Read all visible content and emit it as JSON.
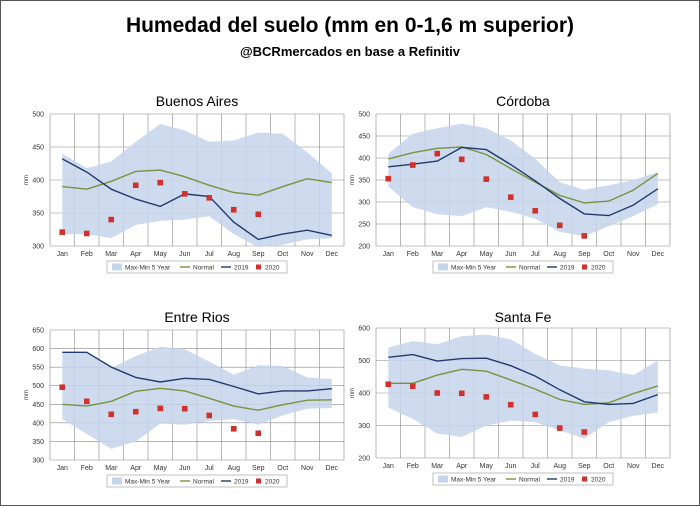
{
  "header": {
    "title": "Humedad del suelo (mm en 0-1,6 m superior)",
    "subtitle": "@BCRmercados en base a Refinitiv"
  },
  "colors": {
    "band": "#c5d5ec",
    "normal": "#77933c",
    "y2019": "#1f3b6e",
    "y2020": "#d0312d",
    "grid": "#888888",
    "axis_text": "#333333"
  },
  "legend_labels": {
    "band": "Max-Min 5 Year",
    "normal": "Normal",
    "y2019": "2019",
    "y2020": "2020"
  },
  "chart_data": [
    {
      "type": "line",
      "title": "Buenos Aires",
      "ylabel": "mm",
      "ylim": [
        300,
        500
      ],
      "yticks": [
        300,
        350,
        400,
        450,
        500
      ],
      "categories": [
        "Jan",
        "Feb",
        "Mar",
        "Apr",
        "May",
        "Jun",
        "Jul",
        "Aug",
        "Sep",
        "Oct",
        "Nov",
        "Dec"
      ],
      "legend_position": "bottom",
      "series": [
        {
          "name": "Max-Min 5 Year",
          "kind": "band",
          "max": [
            440,
            418,
            428,
            458,
            485,
            475,
            458,
            460,
            472,
            470,
            442,
            410
          ],
          "min": [
            318,
            318,
            312,
            332,
            338,
            340,
            345,
            318,
            298,
            302,
            310,
            312
          ]
        },
        {
          "name": "Normal",
          "kind": "line",
          "values": [
            390,
            386,
            398,
            413,
            415,
            405,
            392,
            381,
            377,
            390,
            402,
            396
          ]
        },
        {
          "name": "2019",
          "kind": "line",
          "values": [
            432,
            412,
            386,
            371,
            360,
            379,
            375,
            336,
            310,
            318,
            324,
            316
          ]
        },
        {
          "name": "2020",
          "kind": "points",
          "values": [
            321,
            319,
            340,
            392,
            396,
            379,
            373,
            355,
            348,
            null,
            null,
            null
          ]
        }
      ]
    },
    {
      "type": "line",
      "title": "Córdoba",
      "ylabel": "mm",
      "ylim": [
        200,
        500
      ],
      "yticks": [
        200,
        250,
        300,
        350,
        400,
        450,
        500
      ],
      "categories": [
        "Jan",
        "Feb",
        "Mar",
        "Apr",
        "May",
        "Jun",
        "Jul",
        "Aug",
        "Sep",
        "Oct",
        "Nov",
        "Dec"
      ],
      "legend_position": "bottom",
      "series": [
        {
          "name": "Max-Min 5 Year",
          "kind": "band",
          "max": [
            410,
            455,
            468,
            478,
            468,
            440,
            398,
            345,
            328,
            338,
            350,
            368
          ],
          "min": [
            335,
            288,
            272,
            268,
            288,
            278,
            262,
            232,
            222,
            245,
            268,
            295
          ]
        },
        {
          "name": "Normal",
          "kind": "line",
          "values": [
            398,
            412,
            422,
            425,
            408,
            376,
            345,
            315,
            298,
            302,
            327,
            365
          ]
        },
        {
          "name": "2019",
          "kind": "line",
          "values": [
            380,
            386,
            393,
            424,
            419,
            385,
            348,
            308,
            273,
            269,
            293,
            330
          ]
        },
        {
          "name": "2020",
          "kind": "points",
          "values": [
            353,
            384,
            410,
            397,
            352,
            311,
            280,
            247,
            223,
            null,
            null,
            null
          ]
        }
      ]
    },
    {
      "type": "line",
      "title": "Entre Rios",
      "ylabel": "mm",
      "ylim": [
        300,
        650
      ],
      "yticks": [
        300,
        350,
        400,
        450,
        500,
        550,
        600,
        650
      ],
      "categories": [
        "Jan",
        "Feb",
        "Mar",
        "Apr",
        "May",
        "Jun",
        "Jul",
        "Aug",
        "Sep",
        "Oct",
        "Nov",
        "Dec"
      ],
      "legend_position": "bottom",
      "series": [
        {
          "name": "Max-Min 5 Year",
          "kind": "band",
          "max": [
            590,
            588,
            548,
            580,
            605,
            598,
            565,
            530,
            555,
            553,
            522,
            518
          ],
          "min": [
            410,
            370,
            330,
            350,
            398,
            395,
            405,
            410,
            395,
            420,
            438,
            440
          ]
        },
        {
          "name": "Normal",
          "kind": "line",
          "values": [
            450,
            445,
            458,
            485,
            493,
            486,
            466,
            445,
            434,
            449,
            461,
            462
          ]
        },
        {
          "name": "2019",
          "kind": "line",
          "values": [
            590,
            590,
            550,
            522,
            510,
            520,
            517,
            498,
            478,
            486,
            486,
            492
          ]
        },
        {
          "name": "2020",
          "kind": "points",
          "values": [
            496,
            458,
            423,
            430,
            439,
            438,
            420,
            384,
            372,
            null,
            null,
            null
          ]
        }
      ]
    },
    {
      "type": "line",
      "title": "Santa Fe",
      "ylabel": "mm",
      "ylim": [
        200,
        600
      ],
      "yticks": [
        200,
        300,
        400,
        500,
        600
      ],
      "categories": [
        "Jan",
        "Feb",
        "Mar",
        "Apr",
        "May",
        "Jun",
        "Jul",
        "Aug",
        "Sep",
        "Oct",
        "Nov",
        "Dec"
      ],
      "legend_position": "bottom",
      "series": [
        {
          "name": "Max-Min 5 Year",
          "kind": "band",
          "max": [
            540,
            560,
            550,
            575,
            580,
            565,
            520,
            485,
            475,
            470,
            455,
            500
          ],
          "min": [
            355,
            320,
            275,
            265,
            300,
            315,
            310,
            285,
            260,
            310,
            330,
            340
          ]
        },
        {
          "name": "Normal",
          "kind": "line",
          "values": [
            430,
            430,
            455,
            473,
            467,
            440,
            412,
            380,
            365,
            370,
            398,
            422
          ]
        },
        {
          "name": "2019",
          "kind": "line",
          "values": [
            510,
            518,
            498,
            506,
            507,
            484,
            452,
            410,
            373,
            365,
            368,
            395
          ]
        },
        {
          "name": "2020",
          "kind": "points",
          "values": [
            427,
            421,
            400,
            399,
            388,
            364,
            334,
            292,
            280,
            null,
            null,
            null
          ]
        }
      ]
    }
  ]
}
